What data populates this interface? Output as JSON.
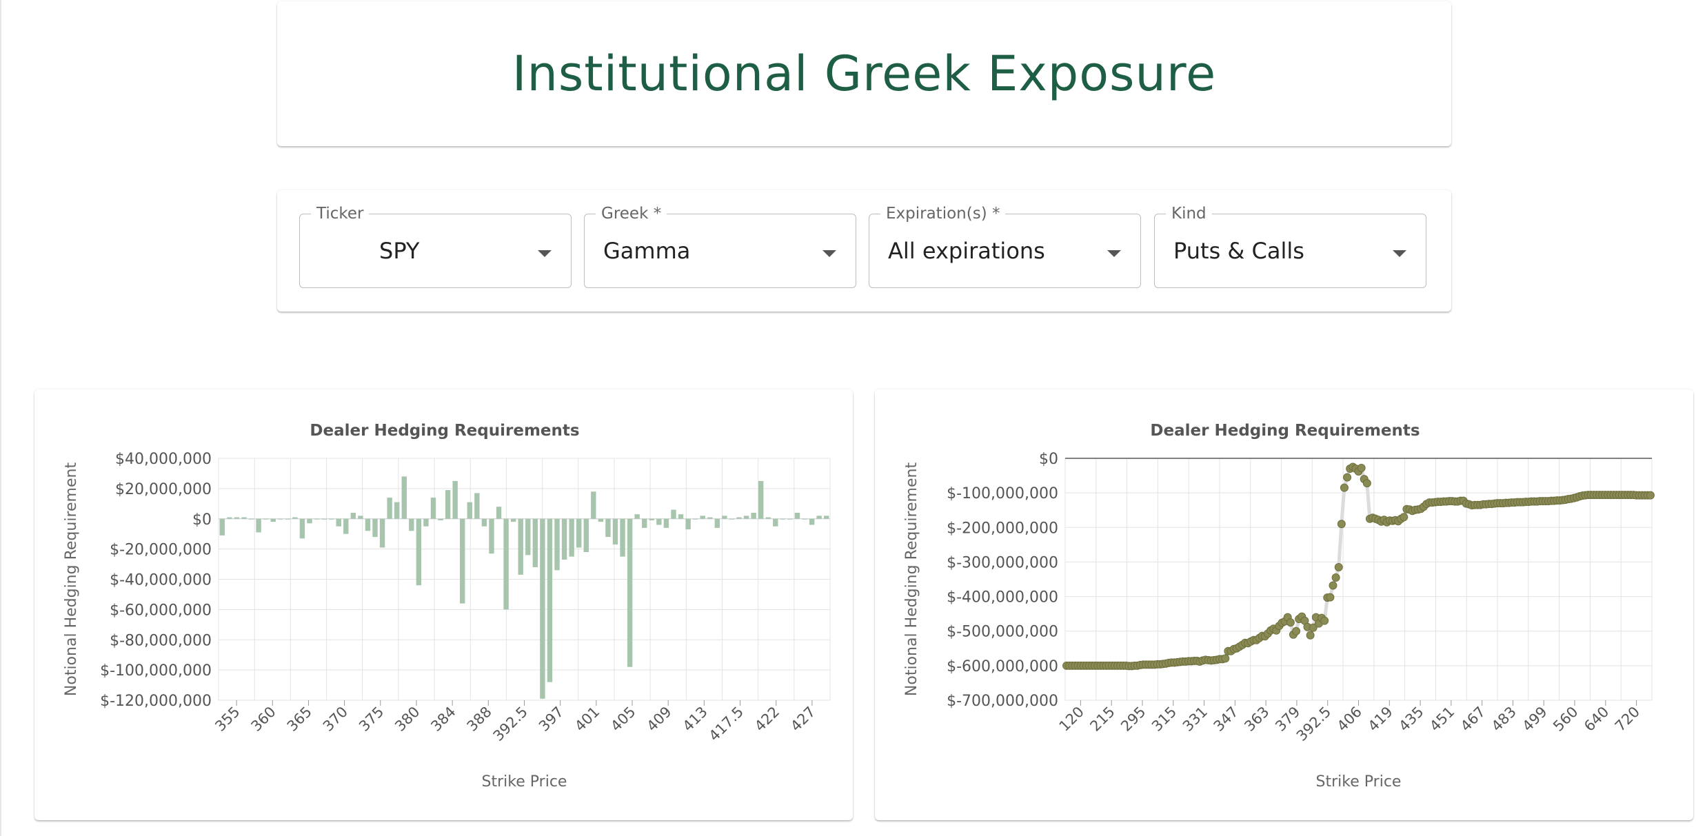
{
  "page": {
    "title": "Institutional Greek Exposure"
  },
  "filters": {
    "ticker": {
      "label": "Ticker",
      "value": "SPY"
    },
    "greek": {
      "label": "Greek *",
      "value": "Gamma"
    },
    "expirations": {
      "label": "Expiration(s) *",
      "value": "All expirations"
    },
    "kind": {
      "label": "Kind",
      "value": "Puts & Calls"
    }
  },
  "chart_data": [
    {
      "type": "bar",
      "title": "Dealer Hedging Requirements",
      "xlabel": "Strike Price",
      "ylabel": "Notional Hedging Requirement",
      "ylim": [
        -120000000,
        40000000
      ],
      "yticks": [
        "$40,000,000",
        "$20,000,000",
        "$0",
        "$-20,000,000",
        "$-40,000,000",
        "$-60,000,000",
        "$-80,000,000",
        "$-100,000,000",
        "$-120,000,000"
      ],
      "tick_labels": [
        "355",
        "360",
        "365",
        "370",
        "375",
        "380",
        "384",
        "388",
        "392.5",
        "397",
        "401",
        "405",
        "409",
        "413",
        "417.5",
        "422",
        "427"
      ],
      "grid": true,
      "bar_color": "#a7c4ad",
      "values": [
        -11000000,
        1000000,
        1000000,
        1000000,
        0,
        -9000000,
        0,
        -2000000,
        0,
        0,
        1000000,
        -13000000,
        -3000000,
        0,
        0,
        0,
        -5000000,
        -10000000,
        4000000,
        2000000,
        -8000000,
        -12000000,
        -19000000,
        14000000,
        11000000,
        28000000,
        -8000000,
        -44000000,
        -5000000,
        14000000,
        -1000000,
        19000000,
        25000000,
        -56000000,
        11000000,
        17000000,
        -5000000,
        -23000000,
        8000000,
        -60000000,
        -2000000,
        -37000000,
        -24000000,
        -32000000,
        -119000000,
        -108000000,
        -34000000,
        -27000000,
        -25000000,
        -19000000,
        -22000000,
        18000000,
        -2000000,
        -12000000,
        -17000000,
        -25000000,
        -98000000,
        3000000,
        -6000000,
        -1000000,
        -4000000,
        -6000000,
        6000000,
        3000000,
        -7000000,
        0,
        2000000,
        1000000,
        -6000000,
        2000000,
        0,
        1000000,
        2000000,
        4000000,
        25000000,
        1000000,
        -5000000,
        0,
        0,
        4000000,
        0,
        -4000000,
        2000000,
        2000000
      ]
    },
    {
      "type": "line",
      "title": "Dealer Hedging Requirements",
      "xlabel": "Strike Price",
      "ylabel": "Notional Hedging Requirement",
      "ylim": [
        -700000000,
        0
      ],
      "yticks": [
        "$0",
        "$-100,000,000",
        "$-200,000,000",
        "$-300,000,000",
        "$-400,000,000",
        "$-500,000,000",
        "$-600,000,000",
        "$-700,000,000"
      ],
      "tick_labels": [
        "120",
        "215",
        "295",
        "315",
        "331",
        "347",
        "363",
        "379",
        "392.5",
        "406",
        "419",
        "435",
        "451",
        "467",
        "483",
        "499",
        "560",
        "640",
        "720"
      ],
      "grid": true,
      "marker_color": "#8a8a55",
      "line_color": "#dcdcdc",
      "values": [
        -600000000,
        -600000000,
        -600000000,
        -600000000,
        -600000000,
        -600000000,
        -600000000,
        -600000000,
        -600000000,
        -600000000,
        -600000000,
        -600000000,
        -600000000,
        -600000000,
        -600000000,
        -600000000,
        -600000000,
        -600000000,
        -600000000,
        -600000000,
        -600000000,
        -600000000,
        -601000000,
        -601000000,
        -600000000,
        -600000000,
        -598000000,
        -597000000,
        -597000000,
        -597000000,
        -597000000,
        -597000000,
        -596000000,
        -596000000,
        -595000000,
        -594000000,
        -592000000,
        -591000000,
        -591000000,
        -590000000,
        -589000000,
        -588000000,
        -588000000,
        -587000000,
        -587000000,
        -586000000,
        -586000000,
        -588000000,
        -585000000,
        -583000000,
        -584000000,
        -585000000,
        -584000000,
        -583000000,
        -581000000,
        -581000000,
        -579000000,
        -558000000,
        -558000000,
        -552000000,
        -550000000,
        -545000000,
        -540000000,
        -534000000,
        -535000000,
        -530000000,
        -526000000,
        -526000000,
        -520000000,
        -514000000,
        -515000000,
        -507000000,
        -498000000,
        -493000000,
        -498000000,
        -485000000,
        -476000000,
        -472000000,
        -460000000,
        -475000000,
        -510000000,
        -500000000,
        -465000000,
        -458000000,
        -470000000,
        -488000000,
        -512000000,
        -490000000,
        -460000000,
        -478000000,
        -462000000,
        -470000000,
        -403000000,
        -402000000,
        -368000000,
        -345000000,
        -315000000,
        -190000000,
        -85000000,
        -55000000,
        -30000000,
        -25000000,
        -30000000,
        -38000000,
        -28000000,
        -60000000,
        -72000000,
        -175000000,
        -172000000,
        -175000000,
        -178000000,
        -183000000,
        -178000000,
        -185000000,
        -180000000,
        -181000000,
        -179000000,
        -182000000,
        -175000000,
        -170000000,
        -147000000,
        -148000000,
        -152000000,
        -149000000,
        -148000000,
        -146000000,
        -140000000,
        -132000000,
        -128000000,
        -128000000,
        -127000000,
        -126000000,
        -126000000,
        -125000000,
        -125000000,
        -124000000,
        -124000000,
        -125000000,
        -125000000,
        -123000000,
        -123000000,
        -131000000,
        -133000000,
        -136000000,
        -135000000,
        -135000000,
        -135000000,
        -133000000,
        -133000000,
        -132000000,
        -132000000,
        -131000000,
        -130000000,
        -130000000,
        -130000000,
        -129000000,
        -129000000,
        -128000000,
        -128000000,
        -127000000,
        -127000000,
        -127000000,
        -126000000,
        -126000000,
        -125000000,
        -125000000,
        -125000000,
        -124000000,
        -124000000,
        -124000000,
        -124000000,
        -123000000,
        -123000000,
        -122000000,
        -122000000,
        -121000000,
        -120000000,
        -118000000,
        -117000000,
        -115000000,
        -113000000,
        -110000000,
        -108000000,
        -107000000,
        -106000000,
        -106000000,
        -106000000,
        -106000000,
        -106000000,
        -106000000,
        -106000000,
        -106000000,
        -106000000,
        -106000000,
        -106000000,
        -106000000,
        -106000000,
        -106000000,
        -106000000,
        -106000000,
        -106000000,
        -107000000,
        -107000000,
        -107000000,
        -107000000,
        -107000000,
        -107000000
      ]
    }
  ]
}
